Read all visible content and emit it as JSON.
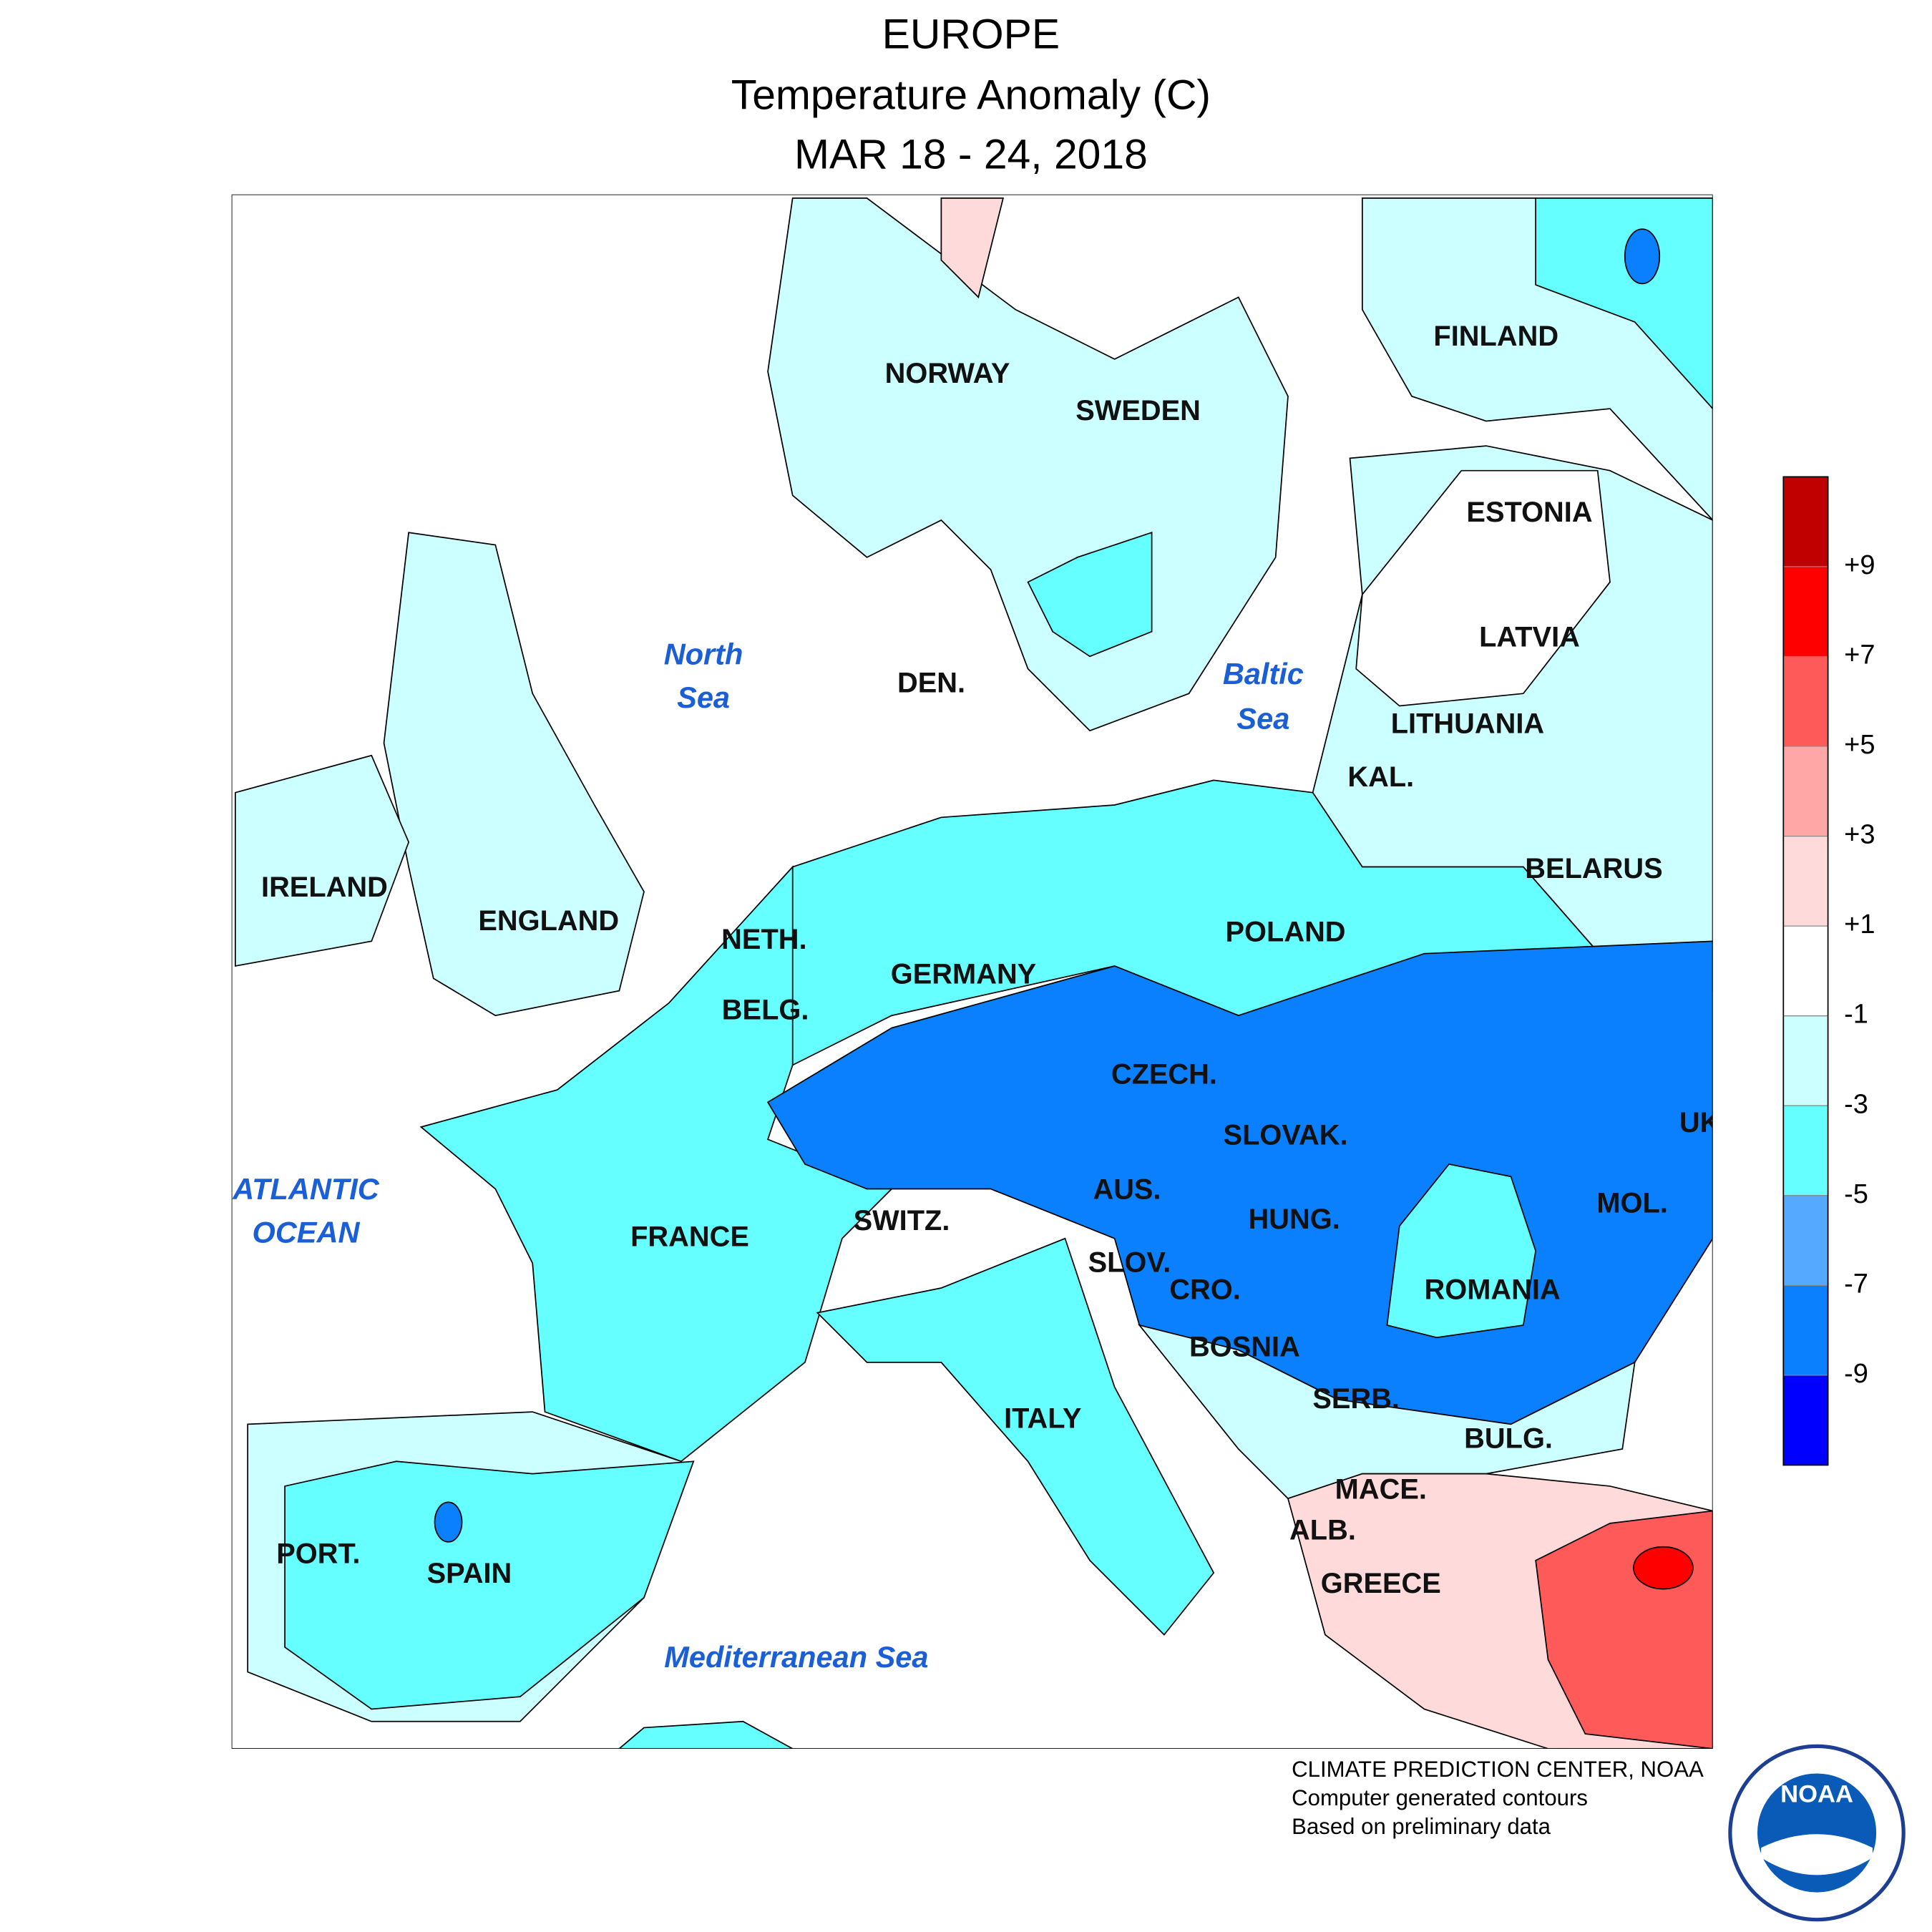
{
  "header": {
    "title": "EUROPE",
    "subtitle": "Temperature Anomaly (C)",
    "dates": "MAR 18 - 24, 2018"
  },
  "labels": {
    "countries": [
      "NORWAY",
      "SWEDEN",
      "FINLAND",
      "ESTONIA",
      "LATVIA",
      "LITHUANIA",
      "KAL.",
      "BELARUS",
      "DEN.",
      "IRELAND",
      "ENGLAND",
      "NETH.",
      "BELG.",
      "GERMANY",
      "POLAND",
      "CZECH.",
      "SLOVAK.",
      "UK",
      "AUS.",
      "SWITZ.",
      "FRANCE",
      "HUNG.",
      "MOL.",
      "SLOV.",
      "CRO.",
      "ROMANIA",
      "BOSNIA",
      "SERB.",
      "ITALY",
      "BULG.",
      "MACE.",
      "ALB.",
      "GREECE",
      "PORT.",
      "SPAIN"
    ],
    "seas": [
      [
        "North",
        "Sea"
      ],
      [
        "Baltic",
        "Sea"
      ],
      [
        "ATLANTIC",
        "OCEAN"
      ],
      [
        "Mediterranean Sea"
      ]
    ]
  },
  "legend": {
    "colors": [
      "#c00000",
      "#ff0000",
      "#ff5a5a",
      "#ffa6a6",
      "#ffdada",
      "#ffffff",
      "#ccffff",
      "#66ffff",
      "#55aaff",
      "#0a80ff",
      "#0000ff"
    ],
    "ticks": [
      {
        "value": 9,
        "label": "+9"
      },
      {
        "value": 7,
        "label": "+7"
      },
      {
        "value": 5,
        "label": "+5"
      },
      {
        "value": 3,
        "label": "+3"
      },
      {
        "value": 1,
        "label": "+1"
      },
      -1,
      -3,
      -5,
      -7,
      -9
    ]
  },
  "credits": [
    "CLIMATE PREDICTION CENTER, NOAA",
    "Computer generated contours",
    "Based on preliminary data"
  ],
  "logo_text": "NOAA"
}
